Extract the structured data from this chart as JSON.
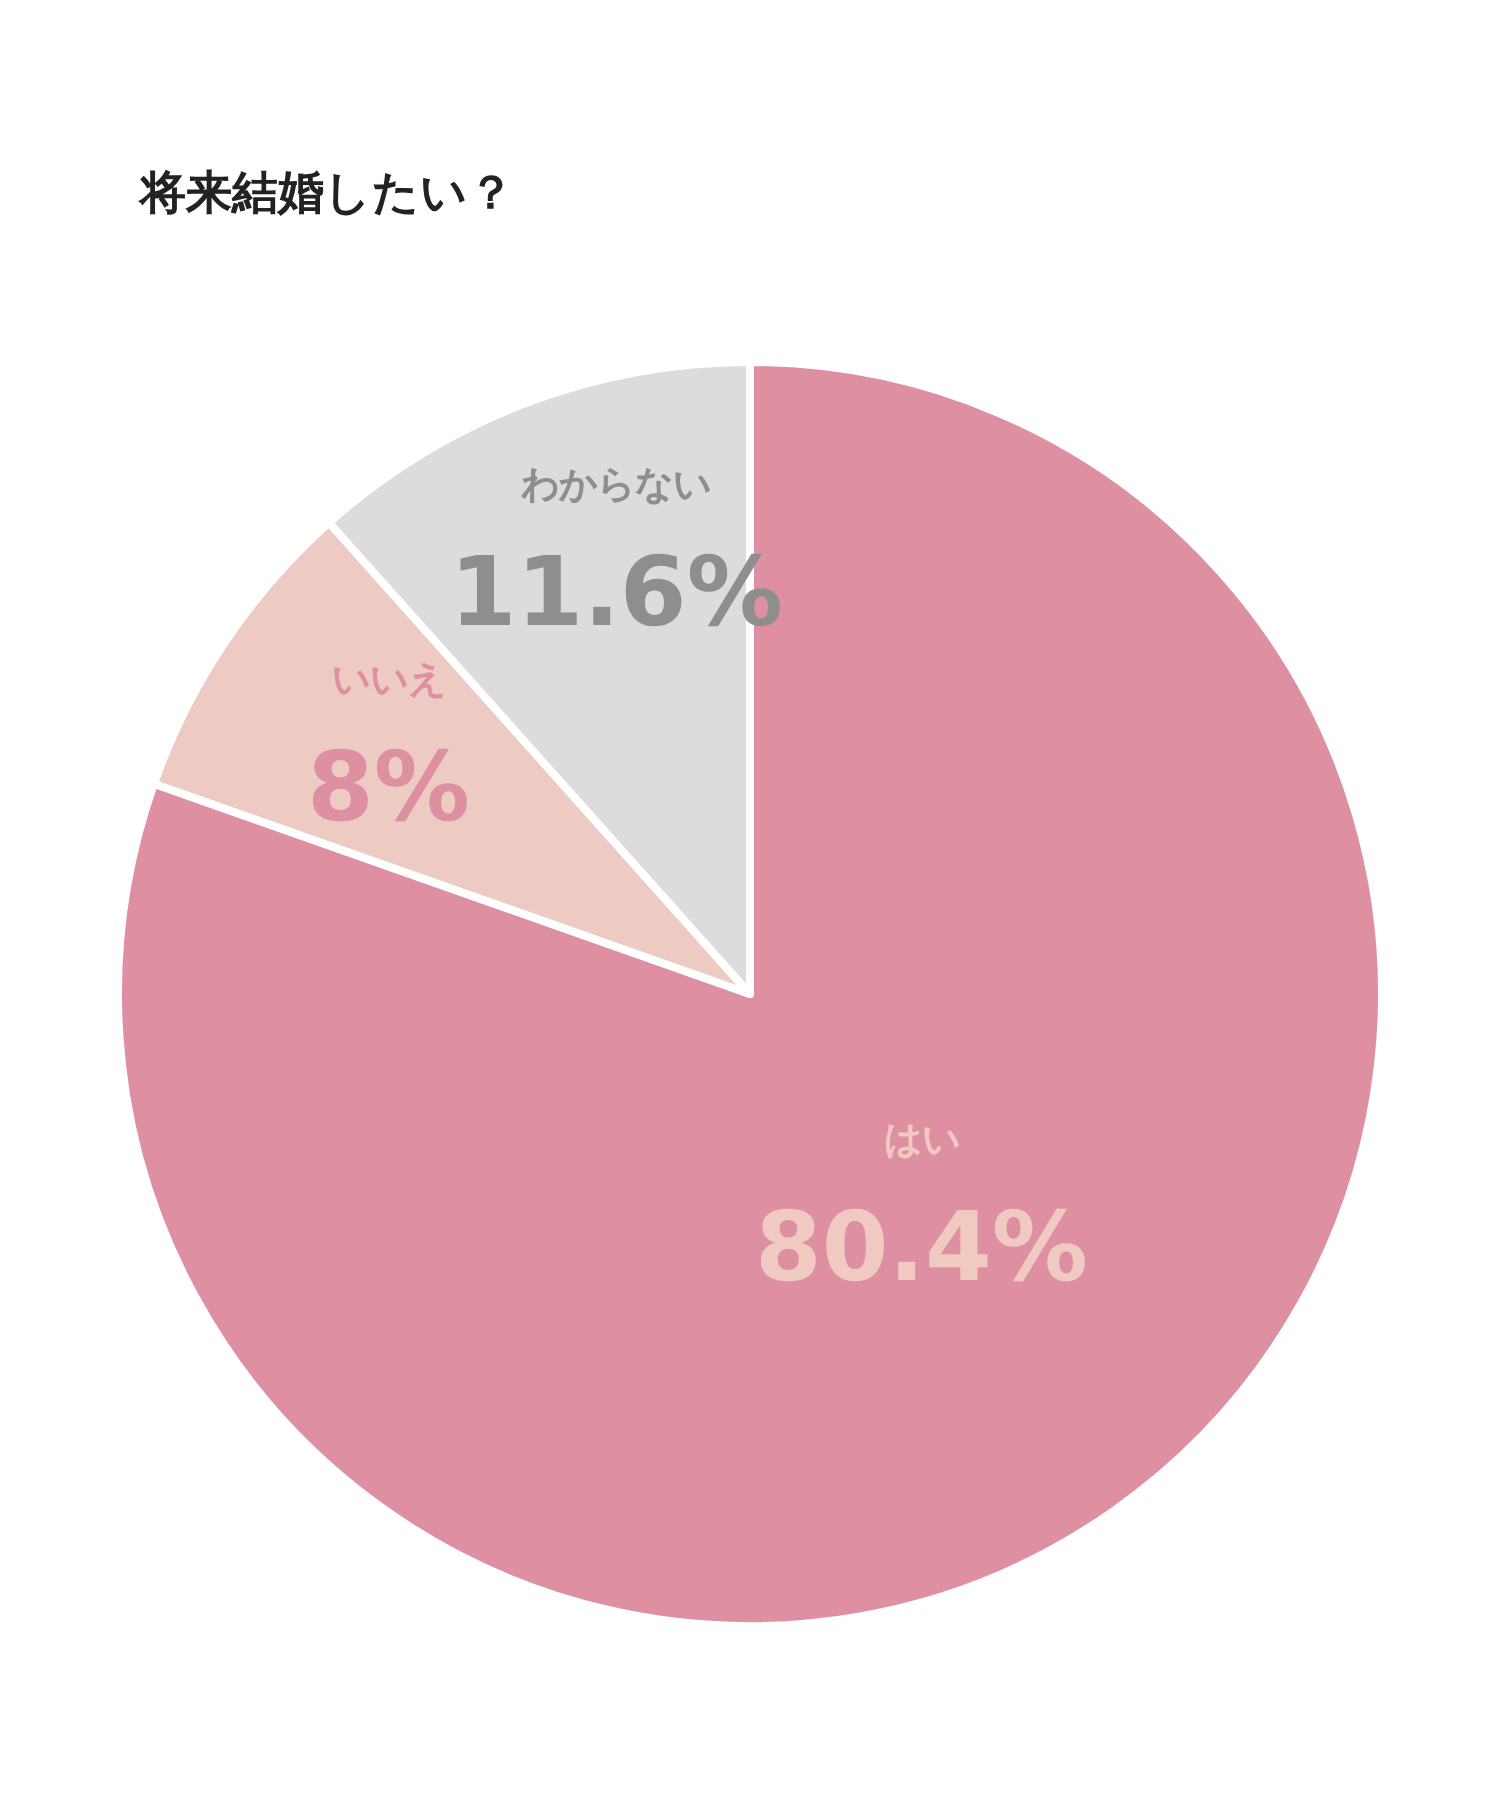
{
  "chart_data": {
    "type": "pie",
    "title": "将来結婚したい？",
    "categories": [
      "はい",
      "いいえ",
      "わからない"
    ],
    "values": [
      80.4,
      8,
      11.6
    ],
    "colors": [
      "#de8fa2",
      "#edcbc3",
      "#dcdcdc"
    ],
    "value_labels": [
      "80.4%",
      "8%",
      "11.6%"
    ]
  }
}
